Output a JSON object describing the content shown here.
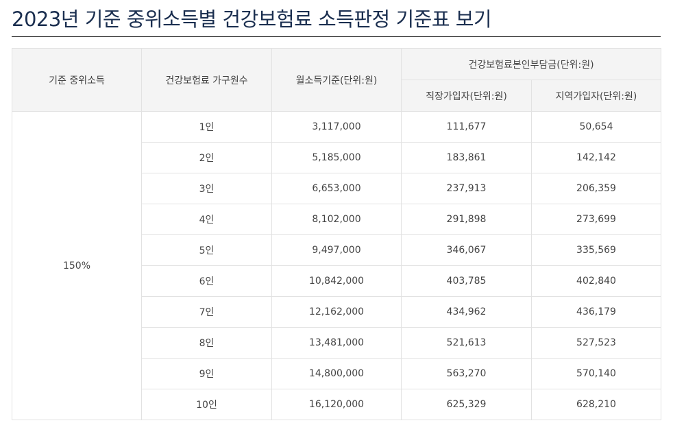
{
  "title": "2023년 기준 중위소득별 건강보험료 소득판정 기준표 보기",
  "table": {
    "headers": {
      "median": "기준 중위소득",
      "household": "건강보험료 가구원수",
      "monthly_income": "월소득기준(단위:원)",
      "premium_group": "건강보험료본인부담금(단위:원)",
      "employee": "직장가입자(단위:원)",
      "regional": "지역가입자(단위:원)"
    },
    "median_value": "150%",
    "rows": [
      {
        "household": "1인",
        "income": "3,117,000",
        "employee": "111,677",
        "regional": "50,654"
      },
      {
        "household": "2인",
        "income": "5,185,000",
        "employee": "183,861",
        "regional": "142,142"
      },
      {
        "household": "3인",
        "income": "6,653,000",
        "employee": "237,913",
        "regional": "206,359"
      },
      {
        "household": "4인",
        "income": "8,102,000",
        "employee": "291,898",
        "regional": "273,699"
      },
      {
        "household": "5인",
        "income": "9,497,000",
        "employee": "346,067",
        "regional": "335,569"
      },
      {
        "household": "6인",
        "income": "10,842,000",
        "employee": "403,785",
        "regional": "402,840"
      },
      {
        "household": "7인",
        "income": "12,162,000",
        "employee": "434,962",
        "regional": "436,179"
      },
      {
        "household": "8인",
        "income": "13,481,000",
        "employee": "521,613",
        "regional": "527,523"
      },
      {
        "household": "9인",
        "income": "14,800,000",
        "employee": "563,270",
        "regional": "570,140"
      },
      {
        "household": "10인",
        "income": "16,120,000",
        "employee": "625,329",
        "regional": "628,210"
      }
    ]
  }
}
